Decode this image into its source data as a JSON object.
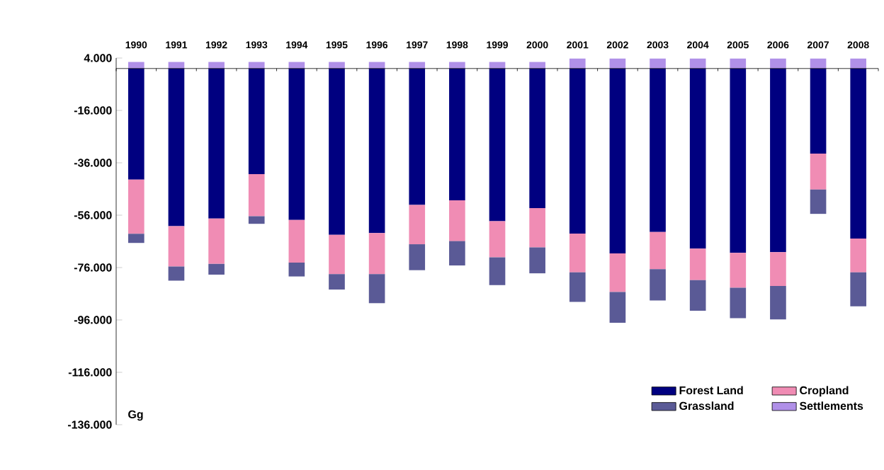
{
  "chart_data": {
    "type": "bar",
    "stacked": true,
    "categories": [
      "1990",
      "1991",
      "1992",
      "1993",
      "1994",
      "1995",
      "1996",
      "1997",
      "1998",
      "1999",
      "2000",
      "2001",
      "2002",
      "2003",
      "2004",
      "2005",
      "2006",
      "2007",
      "2008"
    ],
    "series": [
      {
        "name": "Forest Land",
        "color": "#000080",
        "values": [
          -42400,
          -60200,
          -57300,
          -40300,
          -57800,
          -63500,
          -62800,
          -52100,
          -50300,
          -58300,
          -53300,
          -63000,
          -70600,
          -62400,
          -68800,
          -70400,
          -70100,
          -32500,
          -64900
        ]
      },
      {
        "name": "Cropland",
        "color": "#f08cb4",
        "values": [
          -20700,
          -15400,
          -17300,
          -16100,
          -16300,
          -15000,
          -15700,
          -15000,
          -15600,
          -13800,
          -15000,
          -14800,
          -14700,
          -14200,
          -12000,
          -13300,
          -12900,
          -13700,
          -12900
        ]
      },
      {
        "name": "Grassland",
        "color": "#5a5a96",
        "values": [
          -3500,
          -5400,
          -4100,
          -2900,
          -5300,
          -5900,
          -11100,
          -9900,
          -9300,
          -10600,
          -9900,
          -11300,
          -11800,
          -12000,
          -11700,
          -11600,
          -12800,
          -9300,
          -13000
        ]
      },
      {
        "name": "Settlements",
        "color": "#b090e8",
        "values": [
          2500,
          2500,
          2500,
          2500,
          2500,
          2500,
          2500,
          2500,
          2500,
          2500,
          2500,
          3800,
          3800,
          3800,
          3800,
          3800,
          3800,
          3800,
          3800
        ]
      }
    ],
    "ylim": [
      -136000,
      4000
    ],
    "yticks": [
      {
        "value": 4000,
        "label": "4.000"
      },
      {
        "value": -16000,
        "label": "-16.000"
      },
      {
        "value": -36000,
        "label": "-36.000"
      },
      {
        "value": -56000,
        "label": "-56.000"
      },
      {
        "value": -76000,
        "label": "-76.000"
      },
      {
        "value": -96000,
        "label": "-96.000"
      },
      {
        "value": -116000,
        "label": "-116.000"
      },
      {
        "value": -136000,
        "label": "-136.000"
      }
    ],
    "annotations": [
      "Gg"
    ],
    "legend": "bottom right",
    "grid": false
  }
}
